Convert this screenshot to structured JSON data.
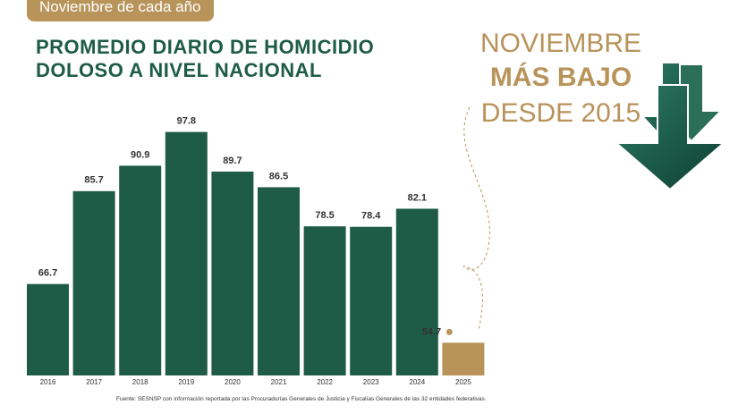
{
  "badge": "Noviembre de cada año",
  "callout": {
    "lines": [
      "NOVIEMBRE",
      "MÁS BAJO",
      "DESDE 2015"
    ]
  },
  "source": "Fuente: SESNSP con información reportada por las Procuradurías Generales de Justicia y Fiscalías Generales de las 32 entidades federativas.",
  "chart_data": {
    "type": "bar",
    "title": "PROMEDIO DIARIO DE HOMICIDIO DOLOSO A NIVEL NACIONAL",
    "categories": [
      "2016",
      "2017",
      "2018",
      "2019",
      "2020",
      "2021",
      "2022",
      "2023",
      "2024",
      "2025"
    ],
    "values": [
      66.7,
      85.7,
      90.9,
      97.8,
      89.7,
      86.5,
      78.5,
      78.4,
      82.1,
      54.7
    ],
    "colors": [
      "#1e5c47",
      "#1e5c47",
      "#1e5c47",
      "#1e5c47",
      "#1e5c47",
      "#1e5c47",
      "#1e5c47",
      "#1e5c47",
      "#1e5c47",
      "#b8935a"
    ],
    "ylim": [
      48,
      100
    ]
  }
}
